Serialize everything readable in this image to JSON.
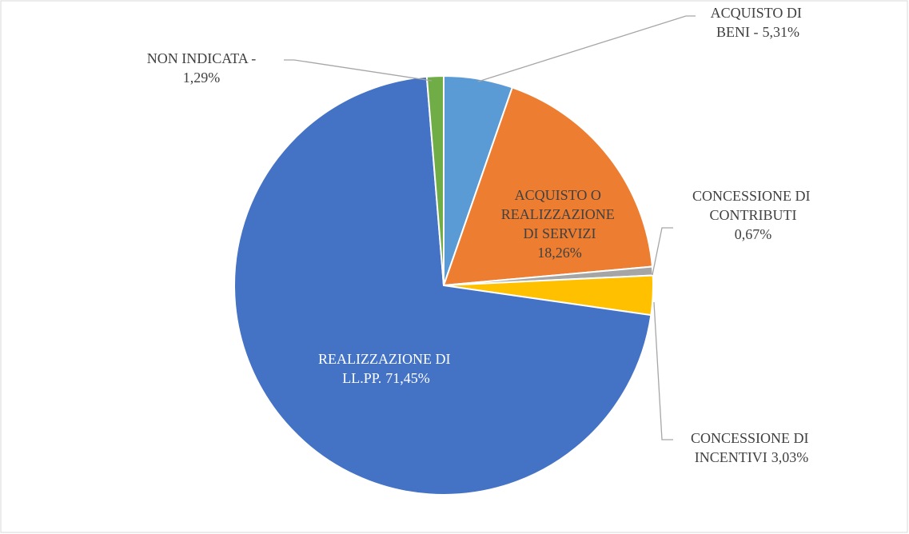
{
  "chart_data": {
    "type": "pie",
    "categories": [
      "ACQUISTO DI BENI -",
      "ACQUISTO O REALIZZAZIONE DI SERVIZI -",
      "CONCESSIONE DI CONTRIBUTI -",
      "CONCESSIONE DI INCENTIVI -",
      "REALIZZAZIONE DI LL.PP. -",
      "NON INDICATA -"
    ],
    "values": [
      5.31,
      18.26,
      0.67,
      3.03,
      71.45,
      1.29
    ],
    "value_labels": [
      "5,31%",
      "18,26%",
      "0,67%",
      "3,03%",
      "71,45%",
      "1,29%"
    ],
    "colors": [
      "#5b9bd5",
      "#ed7d31",
      "#a5a5a5",
      "#ffc000",
      "#4472c4",
      "#70ad47"
    ]
  }
}
